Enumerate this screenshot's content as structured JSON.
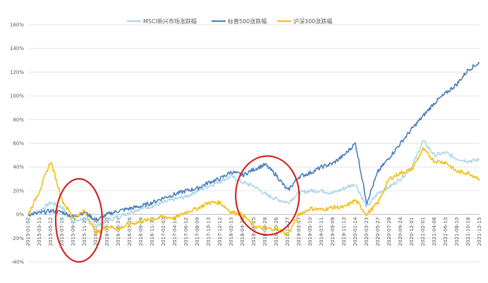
{
  "chart_data": {
    "type": "line",
    "title": "",
    "xlabel": "",
    "ylabel": "",
    "ylim": [
      -0.4,
      1.6
    ],
    "yticks": [
      -0.4,
      -0.2,
      0,
      0.2,
      0.4,
      0.6,
      0.8,
      1.0,
      1.2,
      1.4,
      1.6
    ],
    "ytick_labels": [
      "-40%",
      "-20%",
      "0%",
      "20%",
      "40%",
      "60%",
      "80%",
      "100%",
      "120%",
      "140%",
      "160%"
    ],
    "x_tick_labels": [
      "2015-01-02",
      "2015-03-11",
      "2015-05-12",
      "2015-07-16",
      "2015-09-22",
      "2015-11-26",
      "2016-01-20",
      "2016-03-23",
      "2016-05-24",
      "2016-07-26",
      "2016-09-26",
      "2016-11-30",
      "2017-02-03",
      "2017-04-10",
      "2017-06-12",
      "2017-08-09",
      "2017-10-13",
      "2017-12-12",
      "2018-02-13",
      "2018-04-20",
      "2018-06-25",
      "2018-08-28",
      "2018-10-26",
      "2018-12-27",
      "2019-03-07",
      "2019-05-10",
      "2019-07-11",
      "2019-09-09",
      "2019-11-13",
      "2020-01-14",
      "2020-03-23",
      "2020-05-27",
      "2020-07-28",
      "2020-09-24",
      "2020-12-01",
      "2021-02-01",
      "2021-04-08",
      "2021-06-10",
      "2021-08-10",
      "2021-10-18",
      "2021-12-15"
    ],
    "grid": true,
    "legend_position": "top",
    "series": [
      {
        "name": "MSCI新兴市场涨跌幅",
        "color": "#ADD8E6",
        "values": [
          0,
          0.03,
          0.1,
          0.06,
          -0.06,
          -0.04,
          -0.1,
          -0.05,
          -0.02,
          0.02,
          0.05,
          0.07,
          0.1,
          0.13,
          0.15,
          0.2,
          0.24,
          0.28,
          0.32,
          0.27,
          0.24,
          0.17,
          0.13,
          0.1,
          0.18,
          0.2,
          0.2,
          0.18,
          0.22,
          0.26,
          0.06,
          0.18,
          0.23,
          0.3,
          0.4,
          0.62,
          0.5,
          0.52,
          0.47,
          0.45,
          0.46
        ]
      },
      {
        "name": "标普500涨跌幅",
        "color": "#4F81BD",
        "values": [
          0,
          0.01,
          0.03,
          0.02,
          -0.02,
          0.02,
          -0.05,
          0.0,
          0.03,
          0.05,
          0.07,
          0.1,
          0.14,
          0.17,
          0.2,
          0.22,
          0.27,
          0.3,
          0.36,
          0.33,
          0.38,
          0.42,
          0.33,
          0.2,
          0.32,
          0.35,
          0.4,
          0.43,
          0.5,
          0.6,
          0.1,
          0.36,
          0.48,
          0.6,
          0.72,
          0.83,
          0.94,
          1.02,
          1.1,
          1.22,
          1.28
        ]
      },
      {
        "name": "沪深300涨跌幅",
        "color": "#F2C112",
        "values": [
          0,
          0.2,
          0.45,
          0.12,
          -0.03,
          0.03,
          -0.16,
          -0.1,
          -0.12,
          -0.08,
          -0.06,
          -0.04,
          -0.02,
          -0.03,
          0.02,
          0.05,
          0.1,
          0.1,
          0.02,
          0.0,
          -0.1,
          -0.12,
          -0.12,
          -0.17,
          0.0,
          0.05,
          0.04,
          0.06,
          0.06,
          0.12,
          0.0,
          0.1,
          0.3,
          0.35,
          0.38,
          0.55,
          0.45,
          0.44,
          0.36,
          0.35,
          0.3
        ]
      }
    ],
    "annotations": [
      {
        "shape": "ellipse",
        "color": "#D42A2A",
        "note": "around 2015-09-22 to 2016-03-23"
      },
      {
        "shape": "ellipse",
        "color": "#D42A2A",
        "note": "around 2018-02-13 to 2018-12-27"
      }
    ]
  }
}
